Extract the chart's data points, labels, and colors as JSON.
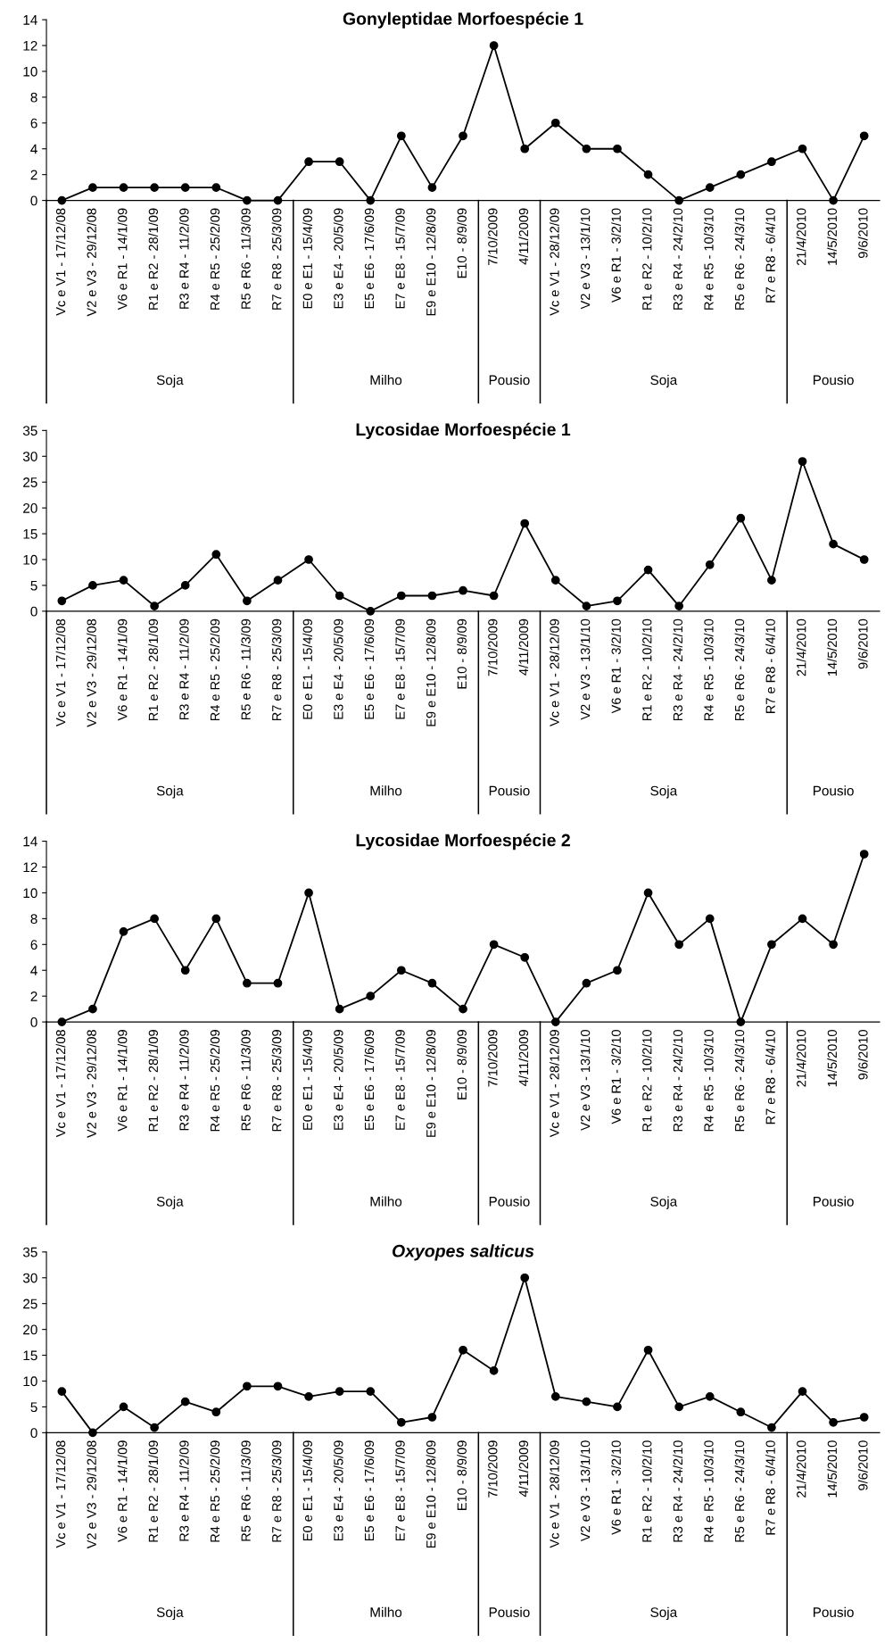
{
  "chart_data": [
    {
      "type": "line",
      "title": "Gonyleptidae Morfoespécie 1",
      "categories": [
        "Vc e V1 - 17/12/08",
        "V2 e V3 - 29/12/08",
        "V6 e R1 - 14/1/09",
        "R1 e R2 - 28/1/09",
        "R3 e R4 - 11/2/09",
        "R4 e R5 - 25/2/09",
        "R5 e R6 - 11/3/09",
        "R7 e R8 - 25/3/09",
        "E0 e E1 - 15/4/09",
        "E3 e E4 - 20/5/09",
        "E5 e E6 - 17/6/09",
        "E7 e E8 - 15/7/09",
        "E9 e E10 - 12/8/09",
        "E10 - 8/9/09",
        "7/10/2009",
        "4/11/2009",
        "Vc e V1 - 28/12/09",
        "V2 e V3 - 13/1/10",
        "V6 e R1 - 3/2/10",
        "R1 e R2 - 10/2/10",
        "R3 e R4 - 24/2/10",
        "R4 e R5 - 10/3/10",
        "R5 e R6 - 24/3/10",
        "R7 e R8 - 6/4/10",
        "21/4/2010",
        "14/5/2010",
        "9/6/2010"
      ],
      "series": [
        {
          "color": "#000000",
          "values": [
            0,
            1,
            1,
            1,
            1,
            1,
            0,
            0,
            3,
            3,
            0,
            5,
            1,
            5,
            12,
            4,
            6,
            4,
            4,
            2,
            0,
            1,
            2,
            3,
            4,
            0,
            5
          ]
        }
      ],
      "ylim": [
        0,
        14
      ],
      "yticks": [
        0,
        2,
        4,
        6,
        8,
        10,
        12,
        14
      ],
      "marker": "circle",
      "line_style": "solid",
      "grid": false,
      "legend": false,
      "annotations": [
        "Soja",
        "Milho",
        "Pousio",
        "Soja",
        "Pousio"
      ]
    },
    {
      "type": "line",
      "title": "Lycosidae Morfoespécie 1",
      "categories": [
        "Vc e V1 - 17/12/08",
        "V2 e V3 - 29/12/08",
        "V6 e R1 - 14/1/09",
        "R1 e R2 - 28/1/09",
        "R3 e R4 - 11/2/09",
        "R4 e R5 - 25/2/09",
        "R5 e R6 - 11/3/09",
        "R7 e R8 - 25/3/09",
        "E0 e E1 - 15/4/09",
        "E3 e E4 - 20/5/09",
        "E5 e E6 - 17/6/09",
        "E7 e E8 - 15/7/09",
        "E9 e E10 - 12/8/09",
        "E10 - 8/9/09",
        "7/10/2009",
        "4/11/2009",
        "Vc e V1 - 28/12/09",
        "V2 e V3 - 13/1/10",
        "V6 e R1 - 3/2/10",
        "R1 e R2 - 10/2/10",
        "R3 e R4 - 24/2/10",
        "R4 e R5 - 10/3/10",
        "R5 e R6 - 24/3/10",
        "R7 e R8 - 6/4/10",
        "21/4/2010",
        "14/5/2010",
        "9/6/2010"
      ],
      "series": [
        {
          "color": "#000000",
          "values": [
            2,
            5,
            6,
            1,
            5,
            11,
            2,
            6,
            10,
            3,
            0,
            3,
            3,
            4,
            3,
            17,
            6,
            1,
            2,
            8,
            1,
            9,
            18,
            6,
            29,
            13,
            10
          ]
        }
      ],
      "ylim": [
        0,
        35
      ],
      "yticks": [
        0,
        5,
        10,
        15,
        20,
        25,
        30,
        35
      ],
      "marker": "circle",
      "line_style": "solid",
      "grid": false,
      "legend": false,
      "annotations": [
        "Soja",
        "Milho",
        "Pousio",
        "Soja",
        "Pousio"
      ]
    },
    {
      "type": "line",
      "title": "Lycosidae Morfoespécie 2",
      "categories": [
        "Vc e V1 - 17/12/08",
        "V2 e V3 - 29/12/08",
        "V6 e R1 - 14/1/09",
        "R1 e R2 - 28/1/09",
        "R3 e R4 - 11/2/09",
        "R4 e R5 - 25/2/09",
        "R5 e R6 - 11/3/09",
        "R7 e R8 - 25/3/09",
        "E0 e E1 - 15/4/09",
        "E3 e E4 - 20/5/09",
        "E5 e E6 - 17/6/09",
        "E7 e E8 - 15/7/09",
        "E9 e E10 - 12/8/09",
        "E10 - 8/9/09",
        "7/10/2009",
        "4/11/2009",
        "Vc e V1 - 28/12/09",
        "V2 e V3 - 13/1/10",
        "V6 e R1 - 3/2/10",
        "R1 e R2 - 10/2/10",
        "R3 e R4 - 24/2/10",
        "R4 e R5 - 10/3/10",
        "R5 e R6 - 24/3/10",
        "R7 e R8 - 6/4/10",
        "21/4/2010",
        "14/5/2010",
        "9/6/2010"
      ],
      "series": [
        {
          "color": "#000000",
          "values": [
            0,
            1,
            7,
            8,
            4,
            8,
            3,
            3,
            10,
            1,
            2,
            4,
            3,
            1,
            6,
            5,
            0,
            3,
            4,
            10,
            6,
            8,
            0,
            6,
            8,
            6,
            13
          ]
        }
      ],
      "ylim": [
        0,
        14
      ],
      "yticks": [
        0,
        2,
        4,
        6,
        8,
        10,
        12,
        14
      ],
      "marker": "circle",
      "line_style": "solid",
      "grid": false,
      "legend": false,
      "annotations": [
        "Soja",
        "Milho",
        "Pousio",
        "Soja",
        "Pousio"
      ]
    },
    {
      "type": "line",
      "title": "Oxyopes salticus",
      "categories": [
        "Vc e V1 - 17/12/08",
        "V2 e V3 - 29/12/08",
        "V6 e R1 - 14/1/09",
        "R1 e R2 - 28/1/09",
        "R3 e R4 - 11/2/09",
        "R4 e R5 - 25/2/09",
        "R5 e R6 - 11/3/09",
        "R7 e R8 - 25/3/09",
        "E0 e E1 - 15/4/09",
        "E3 e E4 - 20/5/09",
        "E5 e E6 - 17/6/09",
        "E7 e E8 - 15/7/09",
        "E9 e E10 - 12/8/09",
        "E10 - 8/9/09",
        "7/10/2009",
        "4/11/2009",
        "Vc e V1 - 28/12/09",
        "V2 e V3 - 13/1/10",
        "V6 e R1 - 3/2/10",
        "R1 e R2 - 10/2/10",
        "R3 e R4 - 24/2/10",
        "R4 e R5 - 10/3/10",
        "R5 e R6 - 24/3/10",
        "R7 e R8 - 6/4/10",
        "21/4/2010",
        "14/5/2010",
        "9/6/2010"
      ],
      "series": [
        {
          "color": "#000000",
          "values": [
            8,
            0,
            5,
            1,
            6,
            4,
            9,
            9,
            7,
            8,
            8,
            2,
            3,
            16,
            12,
            30,
            7,
            6,
            5,
            16,
            5,
            7,
            4,
            1,
            8,
            2,
            3
          ]
        }
      ],
      "ylim": [
        0,
        35
      ],
      "yticks": [
        0,
        5,
        10,
        15,
        20,
        25,
        30,
        35
      ],
      "marker": "circle",
      "line_style": "solid",
      "grid": false,
      "legend": false,
      "annotations": [
        "Soja",
        "Milho",
        "Pousio",
        "Soja",
        "Pousio"
      ]
    }
  ]
}
